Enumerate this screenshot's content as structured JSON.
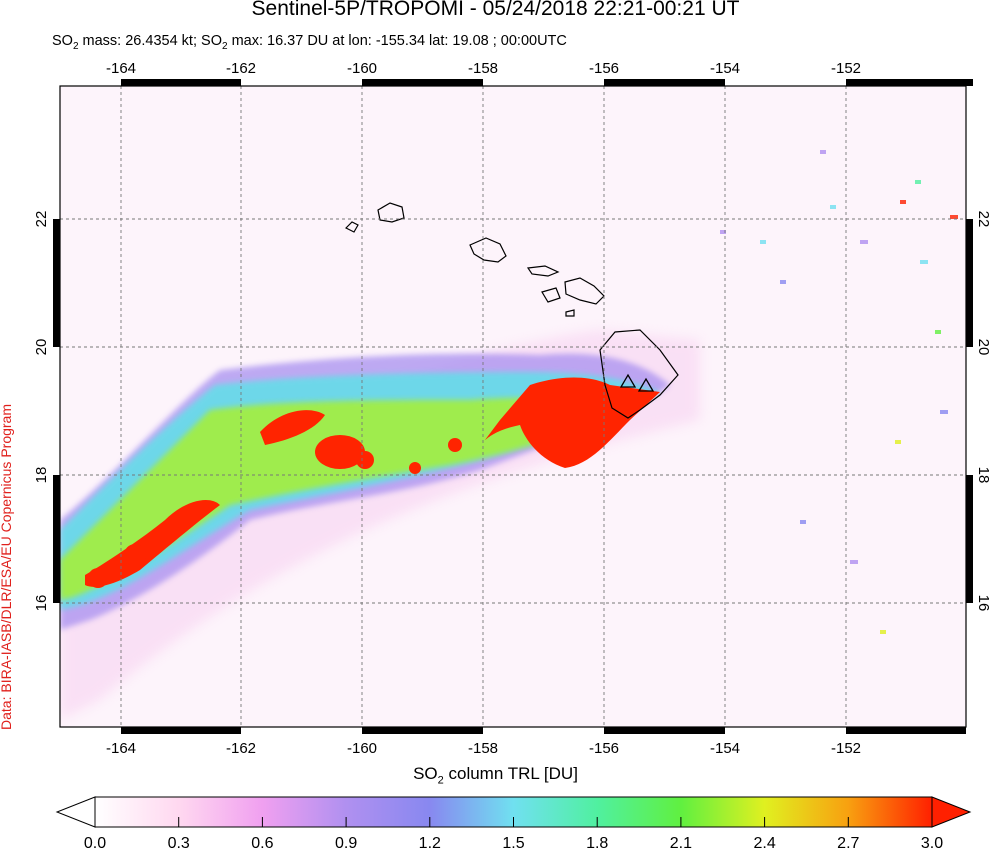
{
  "title": "Sentinel-5P/TROPOMI - 05/24/2018 22:21-00:21 UT",
  "subtitle": {
    "prefix": "SO",
    "sub": "2",
    "text": " mass: 26.4354 kt; SO",
    "sub2": "2",
    "text2": " max: 16.37 DU at lon: -155.34 lat: 19.08 ; 00:00UTC"
  },
  "credit": "Data: BIRA-IASB/DLR/ESA/EU Copernicus Program",
  "map": {
    "lon_range": [
      -165,
      -150
    ],
    "lat_range": [
      14,
      24
    ],
    "lon_ticks": [
      "-164",
      "-162",
      "-160",
      "-158",
      "-156",
      "-154",
      "-152"
    ],
    "lat_ticks": [
      "16",
      "18",
      "20",
      "22"
    ],
    "volcano_markers": [
      "volcano-1",
      "volcano-2"
    ]
  },
  "colorbar": {
    "label_prefix": "SO",
    "label_sub": "2",
    "label_text": " column TRL [DU]",
    "ticks": [
      "0.0",
      "0.3",
      "0.6",
      "0.9",
      "1.2",
      "1.5",
      "1.8",
      "2.1",
      "2.4",
      "2.7",
      "3.0"
    ],
    "colors": [
      "#ffffff",
      "#ffd8f0",
      "#f0a0f0",
      "#b090f0",
      "#8888f0",
      "#70e0f0",
      "#50f0a0",
      "#60f040",
      "#e0f020",
      "#f8a010",
      "#ff2000"
    ]
  }
}
